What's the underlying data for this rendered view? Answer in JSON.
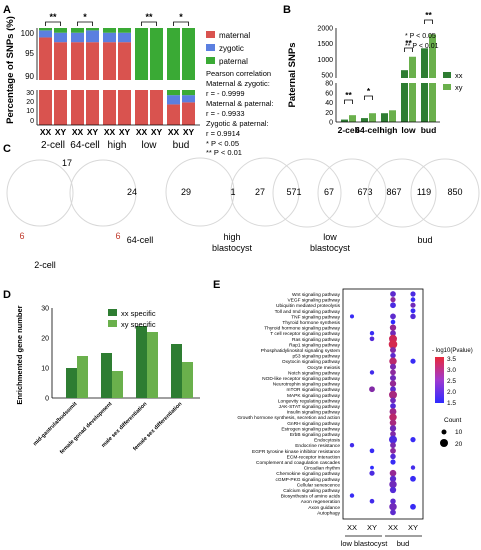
{
  "panels": {
    "A": "A",
    "B": "B",
    "C": "C",
    "D": "D",
    "E": "E"
  },
  "colors": {
    "maternal": "#d9534f",
    "zygotic": "#5b7fe0",
    "paternal": "#3aaa35",
    "xx": "#2e7d32",
    "xy": "#6ab04c",
    "sig": "#000000"
  },
  "chart_data": [
    {
      "panel": "A",
      "type": "bar",
      "stacked": true,
      "ylabel": "Percentage of SNPs (%)",
      "yticks_upper": [
        "100",
        "95",
        "90"
      ],
      "yticks_lower": [
        "30",
        "20",
        "10",
        "0"
      ],
      "stages": [
        "2-cell",
        "64-cell",
        "high",
        "low",
        "bud"
      ],
      "sexes": [
        "XX",
        "XY"
      ],
      "legend": [
        "maternal",
        "zygotic",
        "paternal"
      ],
      "series": [
        {
          "name": "maternal",
          "values": [
            98,
            97,
            97,
            97,
            97,
            97,
            40,
            42,
            20,
            22
          ]
        },
        {
          "name": "zygotic",
          "values": [
            1.5,
            2,
            2,
            2.5,
            2,
            2,
            8,
            6,
            9,
            7
          ]
        },
        {
          "name": "paternal",
          "values": [
            0.5,
            1,
            1,
            0.5,
            1,
            1,
            52,
            52,
            71,
            71
          ]
        }
      ],
      "significance": [
        {
          "stage": "2-cell",
          "mark": "**"
        },
        {
          "stage": "64-cell",
          "mark": "*"
        },
        {
          "stage": "low",
          "mark": "**"
        },
        {
          "stage": "bud",
          "mark": "*"
        }
      ],
      "stats": [
        "Pearson correlation",
        "Maternal & zygotic:",
        "r = - 0.9999",
        "Maternal & paternal:",
        "r = - 0.9933",
        "Zygotic & paternal:",
        "r =   0.9914",
        "*     P < 0.05",
        "**   P < 0.01"
      ]
    },
    {
      "panel": "B",
      "type": "bar",
      "ylabel": "Paternal SNPs",
      "yticks": [
        "2000",
        "1500",
        "1000",
        "500",
        "80",
        "60",
        "40",
        "20",
        "0"
      ],
      "categories": [
        "2-cell",
        "64-cell",
        "high",
        "low",
        "bud"
      ],
      "series": [
        {
          "name": "xx",
          "values": [
            5,
            8,
            18,
            650,
            1350
          ]
        },
        {
          "name": "xy",
          "values": [
            14,
            18,
            24,
            1080,
            1800
          ]
        }
      ],
      "significance": [
        {
          "stage": "2-cell",
          "mark": "**"
        },
        {
          "stage": "64-cell",
          "mark": "*"
        },
        {
          "stage": "low",
          "mark": "**"
        },
        {
          "stage": "bud",
          "mark": "**"
        }
      ],
      "notes": [
        "*     P < 0.05",
        "**   P < 0.01"
      ]
    },
    {
      "panel": "C",
      "type": "venn",
      "sets": [
        {
          "label": "2-cell",
          "left": "6",
          "right": "6",
          "top": "17"
        },
        {
          "label": "64-cell",
          "right": "24"
        },
        {
          "label": "high blastocyst",
          "left": "29",
          "both": "1",
          "right": "27"
        },
        {
          "label": "low blastocyst",
          "left": "571",
          "both": "67",
          "right": "673"
        },
        {
          "label": "bud",
          "left": "867",
          "both": "119",
          "right": "850"
        }
      ]
    },
    {
      "panel": "D",
      "type": "bar",
      "ylabel": "Enrichmented gene number",
      "yticks": [
        "30",
        "20",
        "10",
        "0"
      ],
      "categories": [
        "mid-gastrula/budsomit",
        "female gonad development",
        "male sex differentiation",
        "female sex differentiation"
      ],
      "series": [
        {
          "name": "xx specific",
          "values": [
            10,
            15,
            24,
            18
          ]
        },
        {
          "name": "xy specific",
          "values": [
            14,
            9,
            22,
            12
          ]
        }
      ]
    },
    {
      "panel": "E",
      "type": "scatter",
      "columns": [
        "XX",
        "XY",
        "XX",
        "XY"
      ],
      "groups": [
        "low blastocyst",
        "bud"
      ],
      "legend_color_title": "- log10(Pvalue)",
      "color_ticks": [
        "3.5",
        "3.0",
        "2.5",
        "2.0",
        "1.5"
      ],
      "legend_size_title": "Count",
      "size_ticks": [
        "10",
        "20"
      ],
      "pathways": [
        "Wnt signaling pathway",
        "VEGF signaling pathway",
        "Ubiquitin mediated proteolysis",
        "Toll and Imd signaling pathway",
        "TNF signaling pathway",
        "Thyroid hormone synthesis",
        "Thyroid hormone signaling pathway",
        "T cell receptor signaling pathway",
        "Ras signaling pathway",
        "Rap1 signaling pathway",
        "Phosphatidylinositol signaling system",
        "p53 signaling pathway",
        "Oxytocin signaling pathway",
        "Oocyte meiosis",
        "Notch signaling pathway",
        "NOD-like receptor signaling pathway",
        "Neurotrophin signaling pathway",
        "mTOR signaling pathway",
        "MAPK signaling pathway",
        "Longevity regulating pathway",
        "JAK-STAT signaling pathway",
        "Insulin signaling pathway",
        "Growth hormone synthesis, secretion and action",
        "GnRH signaling pathway",
        "Estrogen signaling pathway",
        "ErbB signaling pathway",
        "Endocytosis",
        "Endocrine resistance",
        "EGFR tyrosine kinase inhibitor resistance",
        "ECM-receptor interaction",
        "Complement and coagulation cascades",
        "Circadian rhythm",
        "Chemokine signaling pathway",
        "cGMP-PKG signaling pathway",
        "Cellular senescence",
        "Calcium signaling pathway",
        "Biosynthesis of amino acids",
        "Axon regeneration",
        "Axon guidance",
        "Autophagy"
      ],
      "points": [
        {
          "pathway": 0,
          "col": 2,
          "p": 2.0,
          "count": 12
        },
        {
          "pathway": 0,
          "col": 3,
          "p": 1.8,
          "count": 10
        },
        {
          "pathway": 1,
          "col": 2,
          "p": 2.5,
          "count": 10
        },
        {
          "pathway": 1,
          "col": 3,
          "p": 1.6,
          "count": 8
        },
        {
          "pathway": 2,
          "col": 2,
          "p": 1.8,
          "count": 12
        },
        {
          "pathway": 2,
          "col": 3,
          "p": 2.2,
          "count": 10
        },
        {
          "pathway": 3,
          "col": 3,
          "p": 1.6,
          "count": 9
        },
        {
          "pathway": 4,
          "col": 0,
          "p": 1.6,
          "count": 6
        },
        {
          "pathway": 4,
          "col": 2,
          "p": 2.0,
          "count": 12
        },
        {
          "pathway": 4,
          "col": 3,
          "p": 1.9,
          "count": 11
        },
        {
          "pathway": 5,
          "col": 2,
          "p": 1.5,
          "count": 8
        },
        {
          "pathway": 6,
          "col": 2,
          "p": 2.6,
          "count": 14
        },
        {
          "pathway": 7,
          "col": 1,
          "p": 1.6,
          "count": 7
        },
        {
          "pathway": 7,
          "col": 2,
          "p": 2.2,
          "count": 12
        },
        {
          "pathway": 8,
          "col": 1,
          "p": 1.9,
          "count": 8
        },
        {
          "pathway": 8,
          "col": 2,
          "p": 3.2,
          "count": 20
        },
        {
          "pathway": 9,
          "col": 2,
          "p": 3.3,
          "count": 22
        },
        {
          "pathway": 10,
          "col": 2,
          "p": 2.4,
          "count": 13
        },
        {
          "pathway": 11,
          "col": 2,
          "p": 2.0,
          "count": 11
        },
        {
          "pathway": 12,
          "col": 2,
          "p": 3.0,
          "count": 18
        },
        {
          "pathway": 12,
          "col": 3,
          "p": 1.6,
          "count": 10
        },
        {
          "pathway": 13,
          "col": 2,
          "p": 2.3,
          "count": 13
        },
        {
          "pathway": 14,
          "col": 1,
          "p": 1.7,
          "count": 7
        },
        {
          "pathway": 14,
          "col": 2,
          "p": 2.5,
          "count": 12
        },
        {
          "pathway": 15,
          "col": 2,
          "p": 2.2,
          "count": 13
        },
        {
          "pathway": 16,
          "col": 2,
          "p": 2.6,
          "count": 14
        },
        {
          "pathway": 17,
          "col": 1,
          "p": 2.4,
          "count": 12
        },
        {
          "pathway": 17,
          "col": 2,
          "p": 2.0,
          "count": 12
        },
        {
          "pathway": 18,
          "col": 2,
          "p": 2.8,
          "count": 20
        },
        {
          "pathway": 19,
          "col": 2,
          "p": 2.2,
          "count": 12
        },
        {
          "pathway": 20,
          "col": 2,
          "p": 1.9,
          "count": 12
        },
        {
          "pathway": 21,
          "col": 2,
          "p": 2.7,
          "count": 16
        },
        {
          "pathway": 22,
          "col": 2,
          "p": 3.0,
          "count": 18
        },
        {
          "pathway": 23,
          "col": 2,
          "p": 2.8,
          "count": 15
        },
        {
          "pathway": 24,
          "col": 2,
          "p": 2.2,
          "count": 14
        },
        {
          "pathway": 25,
          "col": 2,
          "p": 2.4,
          "count": 12
        },
        {
          "pathway": 26,
          "col": 2,
          "p": 1.8,
          "count": 20
        },
        {
          "pathway": 26,
          "col": 3,
          "p": 1.6,
          "count": 10
        },
        {
          "pathway": 27,
          "col": 0,
          "p": 1.7,
          "count": 7
        },
        {
          "pathway": 27,
          "col": 2,
          "p": 2.3,
          "count": 12
        },
        {
          "pathway": 28,
          "col": 1,
          "p": 1.6,
          "count": 8
        },
        {
          "pathway": 28,
          "col": 2,
          "p": 2.5,
          "count": 12
        },
        {
          "pathway": 29,
          "col": 2,
          "p": 1.9,
          "count": 11
        },
        {
          "pathway": 30,
          "col": 2,
          "p": 1.6,
          "count": 10
        },
        {
          "pathway": 31,
          "col": 1,
          "p": 1.5,
          "count": 5
        },
        {
          "pathway": 31,
          "col": 3,
          "p": 1.7,
          "count": 7
        },
        {
          "pathway": 32,
          "col": 1,
          "p": 1.8,
          "count": 10
        },
        {
          "pathway": 32,
          "col": 2,
          "p": 2.6,
          "count": 15
        },
        {
          "pathway": 33,
          "col": 2,
          "p": 2.0,
          "count": 14
        },
        {
          "pathway": 33,
          "col": 3,
          "p": 1.6,
          "count": 12
        },
        {
          "pathway": 34,
          "col": 2,
          "p": 2.2,
          "count": 18
        },
        {
          "pathway": 35,
          "col": 2,
          "p": 1.9,
          "count": 14
        },
        {
          "pathway": 36,
          "col": 0,
          "p": 1.6,
          "count": 7
        },
        {
          "pathway": 37,
          "col": 1,
          "p": 1.7,
          "count": 8
        },
        {
          "pathway": 37,
          "col": 2,
          "p": 2.0,
          "count": 11
        },
        {
          "pathway": 38,
          "col": 2,
          "p": 2.2,
          "count": 18
        },
        {
          "pathway": 38,
          "col": 3,
          "p": 1.6,
          "count": 12
        },
        {
          "pathway": 39,
          "col": 2,
          "p": 2.0,
          "count": 12
        }
      ]
    }
  ]
}
